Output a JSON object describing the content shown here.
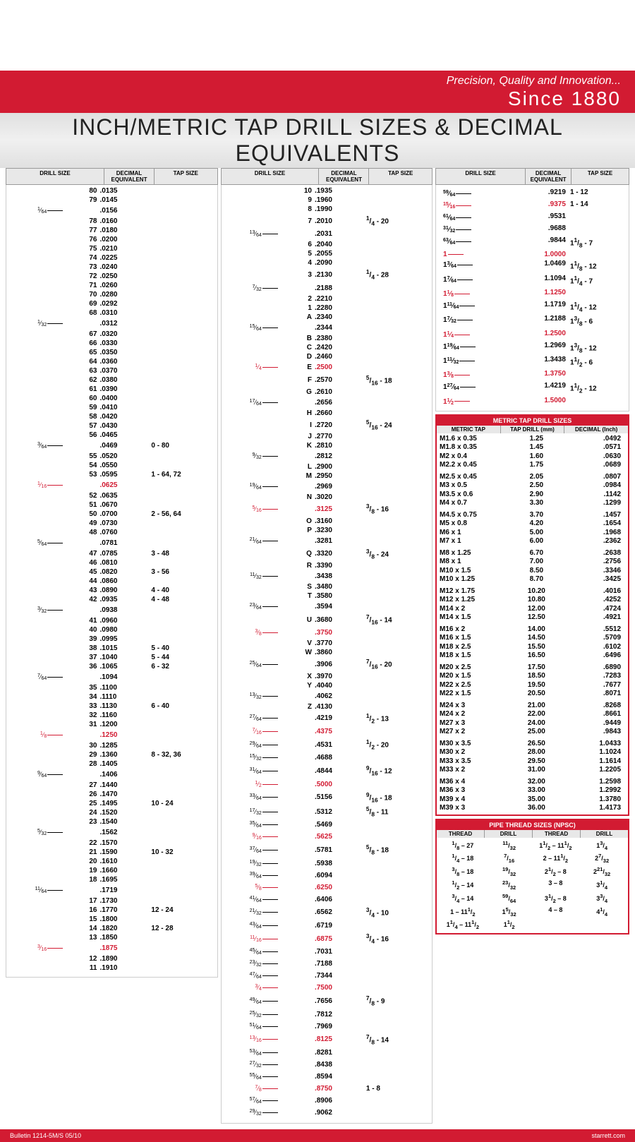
{
  "banner": {
    "tagline": "Precision, Quality and Innovation...",
    "since": "Since 1880"
  },
  "title": "INCH/METRIC TAP DRILL SIZES & DECIMAL EQUIVALENTS",
  "headers": {
    "drill": "DRILL SIZE",
    "dec": "DECIMAL EQUIVALENT",
    "tap": "TAP SIZE"
  },
  "col1": [
    {
      "n": "80",
      "d": ".0135"
    },
    {
      "n": "79",
      "d": ".0145"
    },
    {
      "f": "1/64",
      "d": ".0156"
    },
    {
      "n": "78",
      "d": ".0160"
    },
    {
      "n": "77",
      "d": ".0180"
    },
    {
      "n": "76",
      "d": ".0200"
    },
    {
      "n": "75",
      "d": ".0210"
    },
    {
      "n": "74",
      "d": ".0225"
    },
    {
      "n": "73",
      "d": ".0240"
    },
    {
      "n": "72",
      "d": ".0250"
    },
    {
      "n": "71",
      "d": ".0260"
    },
    {
      "n": "70",
      "d": ".0280"
    },
    {
      "n": "69",
      "d": ".0292"
    },
    {
      "n": "68",
      "d": ".0310"
    },
    {
      "f": "1/32",
      "d": ".0312"
    },
    {
      "n": "67",
      "d": ".0320"
    },
    {
      "n": "66",
      "d": ".0330"
    },
    {
      "n": "65",
      "d": ".0350"
    },
    {
      "n": "64",
      "d": ".0360"
    },
    {
      "n": "63",
      "d": ".0370"
    },
    {
      "n": "62",
      "d": ".0380"
    },
    {
      "n": "61",
      "d": ".0390"
    },
    {
      "n": "60",
      "d": ".0400"
    },
    {
      "n": "59",
      "d": ".0410"
    },
    {
      "n": "58",
      "d": ".0420"
    },
    {
      "n": "57",
      "d": ".0430"
    },
    {
      "n": "56",
      "d": ".0465"
    },
    {
      "f": "3/64",
      "d": ".0469",
      "t": "0 - 80"
    },
    {
      "n": "55",
      "d": ".0520"
    },
    {
      "n": "54",
      "d": ".0550"
    },
    {
      "n": "53",
      "d": ".0595",
      "t": "1 - 64, 72"
    },
    {
      "f": "1/16",
      "d": ".0625",
      "red": true
    },
    {
      "n": "52",
      "d": ".0635"
    },
    {
      "n": "51",
      "d": ".0670"
    },
    {
      "n": "50",
      "d": ".0700",
      "t": "2 - 56, 64"
    },
    {
      "n": "49",
      "d": ".0730"
    },
    {
      "n": "48",
      "d": ".0760"
    },
    {
      "f": "5/64",
      "d": ".0781"
    },
    {
      "n": "47",
      "d": ".0785",
      "t": "3 - 48"
    },
    {
      "n": "46",
      "d": ".0810"
    },
    {
      "n": "45",
      "d": ".0820",
      "t": "3 - 56"
    },
    {
      "n": "44",
      "d": ".0860"
    },
    {
      "n": "43",
      "d": ".0890",
      "t": "4 - 40"
    },
    {
      "n": "42",
      "d": ".0935",
      "t": "4 - 48"
    },
    {
      "f": "3/32",
      "d": ".0938"
    },
    {
      "n": "41",
      "d": ".0960"
    },
    {
      "n": "40",
      "d": ".0980"
    },
    {
      "n": "39",
      "d": ".0995"
    },
    {
      "n": "38",
      "d": ".1015",
      "t": "5 - 40"
    },
    {
      "n": "37",
      "d": ".1040",
      "t": "5 - 44"
    },
    {
      "n": "36",
      "d": ".1065",
      "t": "6 - 32"
    },
    {
      "f": "7/64",
      "d": ".1094"
    },
    {
      "n": "35",
      "d": ".1100"
    },
    {
      "n": "34",
      "d": ".1110"
    },
    {
      "n": "33",
      "d": ".1130",
      "t": "6 - 40"
    },
    {
      "n": "32",
      "d": ".1160"
    },
    {
      "n": "31",
      "d": ".1200"
    },
    {
      "f": "1/8",
      "d": ".1250",
      "red": true
    },
    {
      "n": "30",
      "d": ".1285"
    },
    {
      "n": "29",
      "d": ".1360",
      "t": "8 - 32, 36"
    },
    {
      "n": "28",
      "d": ".1405"
    },
    {
      "f": "9/64",
      "d": ".1406"
    },
    {
      "n": "27",
      "d": ".1440"
    },
    {
      "n": "26",
      "d": ".1470"
    },
    {
      "n": "25",
      "d": ".1495",
      "t": "10 - 24"
    },
    {
      "n": "24",
      "d": ".1520"
    },
    {
      "n": "23",
      "d": ".1540"
    },
    {
      "f": "5/32",
      "d": ".1562"
    },
    {
      "n": "22",
      "d": ".1570"
    },
    {
      "n": "21",
      "d": ".1590",
      "t": "10 - 32"
    },
    {
      "n": "20",
      "d": ".1610"
    },
    {
      "n": "19",
      "d": ".1660"
    },
    {
      "n": "18",
      "d": ".1695"
    },
    {
      "f": "11/64",
      "d": ".1719"
    },
    {
      "n": "17",
      "d": ".1730"
    },
    {
      "n": "16",
      "d": ".1770",
      "t": "12 - 24"
    },
    {
      "n": "15",
      "d": ".1800"
    },
    {
      "n": "14",
      "d": ".1820",
      "t": "12 - 28"
    },
    {
      "n": "13",
      "d": ".1850"
    },
    {
      "f": "3/16",
      "d": ".1875",
      "red": true
    },
    {
      "n": "12",
      "d": ".1890"
    },
    {
      "n": "11",
      "d": ".1910"
    }
  ],
  "col2": [
    {
      "n": "10",
      "d": ".1935"
    },
    {
      "n": "9",
      "d": ".1960"
    },
    {
      "n": "8",
      "d": ".1990"
    },
    {
      "n": "7",
      "d": ".2010",
      "t": "1/4 - 20"
    },
    {
      "f": "13/64",
      "d": ".2031"
    },
    {
      "n": "6",
      "d": ".2040"
    },
    {
      "n": "5",
      "d": ".2055"
    },
    {
      "n": "4",
      "d": ".2090"
    },
    {
      "n": "3",
      "d": ".2130",
      "t": "1/4 - 28"
    },
    {
      "f": "7/32",
      "d": ".2188"
    },
    {
      "n": "2",
      "d": ".2210"
    },
    {
      "n": "1",
      "d": ".2280"
    },
    {
      "n": "A",
      "d": ".2340"
    },
    {
      "f": "15/64",
      "d": ".2344"
    },
    {
      "n": "B",
      "d": ".2380"
    },
    {
      "n": "C",
      "d": ".2420"
    },
    {
      "n": "D",
      "d": ".2460"
    },
    {
      "f": "1/4",
      "n": "E",
      "d": ".2500",
      "red": true
    },
    {
      "n": "F",
      "d": ".2570",
      "t": "5/16 - 18"
    },
    {
      "n": "G",
      "d": ".2610"
    },
    {
      "f": "17/64",
      "d": ".2656"
    },
    {
      "n": "H",
      "d": ".2660"
    },
    {
      "n": "I",
      "d": ".2720",
      "t": "5/16 - 24"
    },
    {
      "n": "J",
      "d": ".2770"
    },
    {
      "n": "K",
      "d": ".2810"
    },
    {
      "f": "9/32",
      "d": ".2812"
    },
    {
      "n": "L",
      "d": ".2900"
    },
    {
      "n": "M",
      "d": ".2950"
    },
    {
      "f": "19/64",
      "d": ".2969"
    },
    {
      "n": "N",
      "d": ".3020"
    },
    {
      "f": "5/16",
      "d": ".3125",
      "red": true,
      "t": "3/8 - 16"
    },
    {
      "n": "O",
      "d": ".3160"
    },
    {
      "n": "P",
      "d": ".3230"
    },
    {
      "f": "21/64",
      "d": ".3281"
    },
    {
      "n": "Q",
      "d": ".3320",
      "t": "3/8 - 24"
    },
    {
      "n": "R",
      "d": ".3390"
    },
    {
      "f": "11/32",
      "d": ".3438"
    },
    {
      "n": "S",
      "d": ".3480"
    },
    {
      "n": "T",
      "d": ".3580"
    },
    {
      "f": "23/64",
      "d": ".3594"
    },
    {
      "n": "U",
      "d": ".3680",
      "t": "7/16 - 14"
    },
    {
      "f": "3/8",
      "d": ".3750",
      "red": true
    },
    {
      "n": "V",
      "d": ".3770"
    },
    {
      "n": "W",
      "d": ".3860"
    },
    {
      "f": "25/64",
      "d": ".3906",
      "t": "7/16 - 20"
    },
    {
      "n": "X",
      "d": ".3970"
    },
    {
      "n": "Y",
      "d": ".4040"
    },
    {
      "f": "13/32",
      "d": ".4062"
    },
    {
      "n": "Z",
      "d": ".4130"
    },
    {
      "f": "27/64",
      "d": ".4219",
      "t": "1/2 - 13"
    },
    {
      "f": "7/16",
      "d": ".4375",
      "red": true
    },
    {
      "f": "29/64",
      "d": ".4531",
      "t": "1/2 - 20"
    },
    {
      "f": "15/32",
      "d": ".4688"
    },
    {
      "f": "31/64",
      "d": ".4844",
      "t": "9/16 - 12"
    },
    {
      "f": "1/2",
      "d": ".5000",
      "red": true
    },
    {
      "f": "33/64",
      "d": ".5156",
      "t": "9/16 - 18"
    },
    {
      "f": "17/32",
      "d": ".5312",
      "t": "5/8 - 11"
    },
    {
      "f": "35/64",
      "d": ".5469"
    },
    {
      "f": "9/16",
      "d": ".5625",
      "red": true
    },
    {
      "f": "37/64",
      "d": ".5781",
      "t": "5/8 - 18"
    },
    {
      "f": "19/32",
      "d": ".5938"
    },
    {
      "f": "39/64",
      "d": ".6094"
    },
    {
      "f": "5/8",
      "d": ".6250",
      "red": true
    },
    {
      "f": "41/64",
      "d": ".6406"
    },
    {
      "f": "21/32",
      "d": ".6562",
      "t": "3/4 - 10"
    },
    {
      "f": "43/64",
      "d": ".6719"
    },
    {
      "f": "11/16",
      "d": ".6875",
      "red": true,
      "t": "3/4 - 16"
    },
    {
      "f": "45/64",
      "d": ".7031"
    },
    {
      "f": "23/32",
      "d": ".7188"
    },
    {
      "f": "47/64",
      "d": ".7344"
    },
    {
      "f": "3/4",
      "d": ".7500",
      "red": true
    },
    {
      "f": "49/64",
      "d": ".7656",
      "t": "7/8 - 9"
    },
    {
      "f": "25/32",
      "d": ".7812"
    },
    {
      "f": "51/64",
      "d": ".7969"
    },
    {
      "f": "13/16",
      "d": ".8125",
      "red": true,
      "t": "7/8 - 14"
    },
    {
      "f": "53/64",
      "d": ".8281"
    },
    {
      "f": "27/32",
      "d": ".8438"
    },
    {
      "f": "55/64",
      "d": ".8594"
    },
    {
      "f": "7/8",
      "d": ".8750",
      "red": true,
      "t": "1 - 8"
    },
    {
      "f": "57/64",
      "d": ".8906"
    },
    {
      "f": "29/32",
      "d": ".9062"
    }
  ],
  "col3": [
    {
      "sd": "59/64",
      "dec": ".9219",
      "tap": "1 - 12"
    },
    {
      "sd": "15/16",
      "dec": ".9375",
      "tap": "1 - 14",
      "red": true
    },
    {
      "sd": "61/64",
      "dec": ".9531"
    },
    {
      "sd": "31/32",
      "dec": ".9688"
    },
    {
      "sd": "63/64",
      "dec": ".9844",
      "tap": "1 1/8 - 7"
    },
    {
      "sd": "1",
      "dec": "1.0000",
      "red": true
    },
    {
      "sd": "1 3/64",
      "dec": "1.0469",
      "tap": "1 1/8 - 12"
    },
    {
      "sd": "1 7/64",
      "dec": "1.1094",
      "tap": "1 1/4 - 7"
    },
    {
      "sd": "1 1/8",
      "dec": "1.1250",
      "red": true
    },
    {
      "sd": "1 11/64",
      "dec": "1.1719",
      "tap": "1 1/4 - 12"
    },
    {
      "sd": "1 7/32",
      "dec": "1.2188",
      "tap": "1 3/8 - 6"
    },
    {
      "sd": "1 1/4",
      "dec": "1.2500",
      "red": true
    },
    {
      "sd": "1 19/64",
      "dec": "1.2969",
      "tap": "1 3/8 - 12"
    },
    {
      "sd": "1 11/32",
      "dec": "1.3438",
      "tap": "1 1/2 - 6"
    },
    {
      "sd": "1 3/8",
      "dec": "1.3750",
      "red": true
    },
    {
      "sd": "1 27/64",
      "dec": "1.4219",
      "tap": "1 1/2 - 12"
    },
    {
      "sd": "1 1/2",
      "dec": "1.5000",
      "red": true
    }
  ],
  "metric": {
    "title": "METRIC TAP DRILL SIZES",
    "headers": [
      "METRIC TAP",
      "TAP DRILL (mm)",
      "DECIMAL (Inch)"
    ],
    "groups": [
      [
        [
          "M1.6 x 0.35",
          "1.25",
          ".0492"
        ],
        [
          "M1.8 x 0.35",
          "1.45",
          ".0571"
        ],
        [
          "M2 x 0.4",
          "1.60",
          ".0630"
        ],
        [
          "M2.2 x 0.45",
          "1.75",
          ".0689"
        ]
      ],
      [
        [
          "M2.5 x 0.45",
          "2.05",
          ".0807"
        ],
        [
          "M3 x 0.5",
          "2.50",
          ".0984"
        ],
        [
          "M3.5 x 0.6",
          "2.90",
          ".1142"
        ],
        [
          "M4 x 0.7",
          "3.30",
          ".1299"
        ]
      ],
      [
        [
          "M4.5 x 0.75",
          "3.70",
          ".1457"
        ],
        [
          "M5 x 0.8",
          "4.20",
          ".1654"
        ],
        [
          "M6 x 1",
          "5.00",
          ".1968"
        ],
        [
          "M7 x 1",
          "6.00",
          ".2362"
        ]
      ],
      [
        [
          "M8 x 1.25",
          "6.70",
          ".2638"
        ],
        [
          "M8 x 1",
          "7.00",
          ".2756"
        ],
        [
          "M10 x 1.5",
          "8.50",
          ".3346"
        ],
        [
          "M10 x 1.25",
          "8.70",
          ".3425"
        ]
      ],
      [
        [
          "M12 x 1.75",
          "10.20",
          ".4016"
        ],
        [
          "M12 x 1.25",
          "10.80",
          ".4252"
        ],
        [
          "M14 x 2",
          "12.00",
          ".4724"
        ],
        [
          "M14 x 1.5",
          "12.50",
          ".4921"
        ]
      ],
      [
        [
          "M16 x 2",
          "14.00",
          ".5512"
        ],
        [
          "M16 x 1.5",
          "14.50",
          ".5709"
        ],
        [
          "M18 x 2.5",
          "15.50",
          ".6102"
        ],
        [
          "M18 x 1.5",
          "16.50",
          ".6496"
        ]
      ],
      [
        [
          "M20 x 2.5",
          "17.50",
          ".6890"
        ],
        [
          "M20 x 1.5",
          "18.50",
          ".7283"
        ],
        [
          "M22 x 2.5",
          "19.50",
          ".7677"
        ],
        [
          "M22 x 1.5",
          "20.50",
          ".8071"
        ]
      ],
      [
        [
          "M24 x 3",
          "21.00",
          ".8268"
        ],
        [
          "M24 x 2",
          "22.00",
          ".8661"
        ],
        [
          "M27 x 3",
          "24.00",
          ".9449"
        ],
        [
          "M27 x 2",
          "25.00",
          ".9843"
        ]
      ],
      [
        [
          "M30 x 3.5",
          "26.50",
          "1.0433"
        ],
        [
          "M30 x 2",
          "28.00",
          "1.1024"
        ],
        [
          "M33 x 3.5",
          "29.50",
          "1.1614"
        ],
        [
          "M33 x 2",
          "31.00",
          "1.2205"
        ]
      ],
      [
        [
          "M36 x 4",
          "32.00",
          "1.2598"
        ],
        [
          "M36 x 3",
          "33.00",
          "1.2992"
        ],
        [
          "M39 x 4",
          "35.00",
          "1.3780"
        ],
        [
          "M39 x 3",
          "36.00",
          "1.4173"
        ]
      ]
    ]
  },
  "pipe": {
    "title": "PIPE THREAD SIZES (NPSC)",
    "headers": [
      "THREAD",
      "DRILL",
      "THREAD",
      "DRILL"
    ],
    "rows": [
      [
        "1/8 – 27",
        "11/32",
        "1 1/2 – 11 1/2",
        "1 3/4"
      ],
      [
        "1/4 – 18",
        "7/16",
        "2 – 11 1/2",
        "2 7/32"
      ],
      [
        "3/8 – 18",
        "19/32",
        "2 1/2 – 8",
        "2 21/32"
      ],
      [
        "1/2 – 14",
        "23/32",
        "3 – 8",
        "3 1/4"
      ],
      [
        "3/4 – 14",
        "59/64",
        "3 1/2 – 8",
        "3 3/4"
      ],
      [
        "1 – 11 1/2",
        "1 5/32",
        "4 – 8",
        "4 1/4"
      ],
      [
        "1 1/4 – 11 1/2",
        "1 1/2",
        "",
        ""
      ]
    ]
  },
  "footer": {
    "left": "Bulletin 1214-5M/S  05/10",
    "right": "starrett.com"
  }
}
